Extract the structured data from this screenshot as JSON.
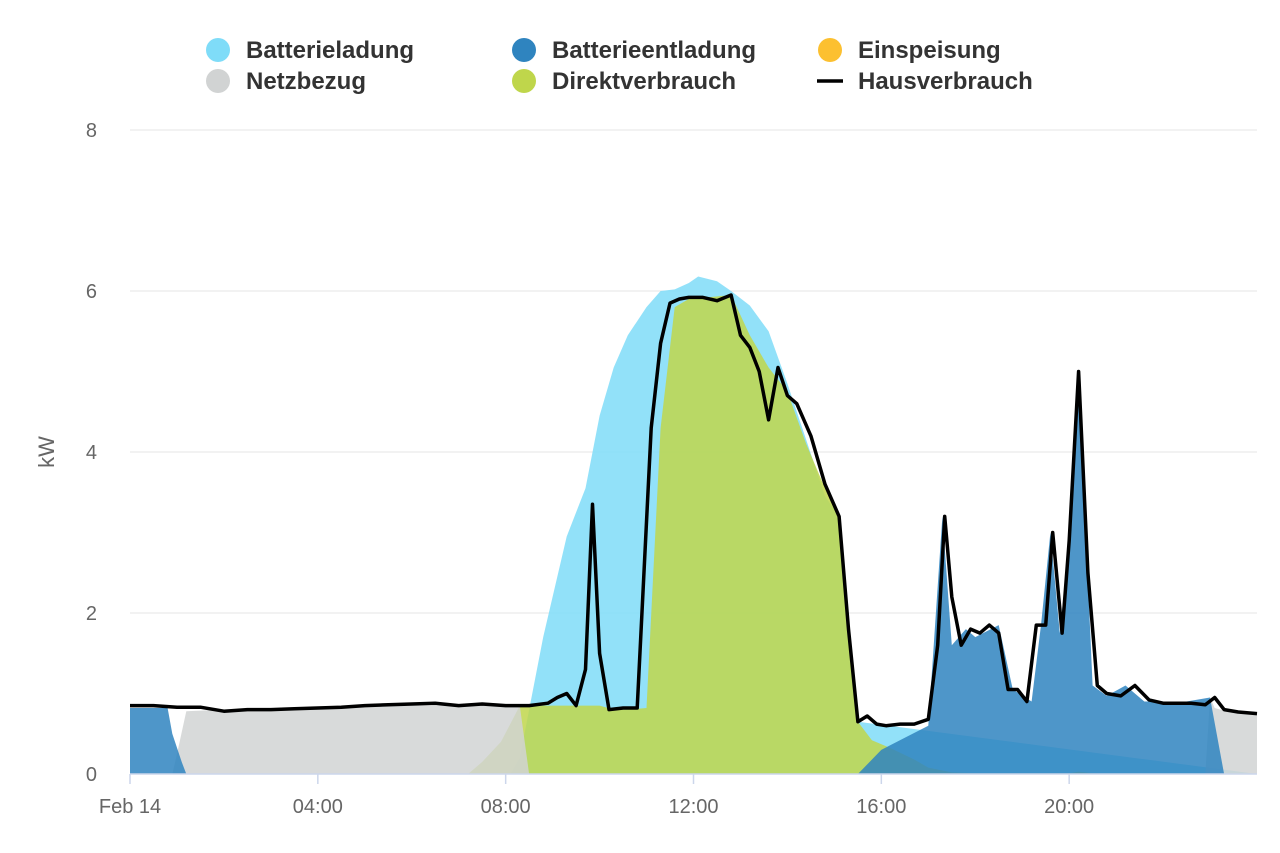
{
  "chart_data": {
    "type": "area",
    "title": "",
    "xlabel": "",
    "ylabel": "kW",
    "ylim": [
      0,
      8
    ],
    "yticks": [
      "0",
      "2",
      "4",
      "6",
      "8"
    ],
    "xlim_hours": [
      0,
      24
    ],
    "xticks": [
      {
        "hour": 0,
        "label": "Feb 14"
      },
      {
        "hour": 4,
        "label": "04:00"
      },
      {
        "hour": 8,
        "label": "08:00"
      },
      {
        "hour": 12,
        "label": "12:00"
      },
      {
        "hour": 16,
        "label": "16:00"
      },
      {
        "hour": 20,
        "label": "20:00"
      }
    ],
    "grid": true,
    "legend_position": "top",
    "legend": [
      {
        "key": "batterieladung",
        "label": "Batterieladung",
        "color": "#7fdcf8",
        "marker": "circle"
      },
      {
        "key": "batterieentladung",
        "label": "Batterieentladung",
        "color": "#2f84bf",
        "marker": "circle"
      },
      {
        "key": "einspeisung",
        "label": "Einspeisung",
        "color": "#fcc030",
        "marker": "circle"
      },
      {
        "key": "netzbezug",
        "label": "Netzbezug",
        "color": "#d1d3d3",
        "marker": "circle"
      },
      {
        "key": "direktverbrauch",
        "label": "Direktverbrauch",
        "color": "#bfd64b",
        "marker": "circle"
      },
      {
        "key": "hausverbrauch",
        "label": "Hausverbrauch",
        "color": "#000000",
        "marker": "line"
      }
    ],
    "series": {
      "direktverbrauch": {
        "x": [
          0,
          7.2,
          7.5,
          7.9,
          8.3,
          8.8,
          9.3,
          9.7,
          10.0,
          10.3,
          10.6,
          11.0,
          11.3,
          11.6,
          11.9,
          12.3,
          12.8,
          13.2,
          13.6,
          14.0,
          14.4,
          14.8,
          15.1,
          15.3,
          15.5,
          15.8,
          16.2,
          16.7,
          17.0,
          17.5,
          18.0,
          19.0,
          20.0,
          20.2,
          20.5,
          21.0,
          24
        ],
        "y": [
          0,
          0,
          0.15,
          0.4,
          0.85,
          0.85,
          0.85,
          0.85,
          0.85,
          0.8,
          0.8,
          0.82,
          4.3,
          5.8,
          5.9,
          5.92,
          5.95,
          5.45,
          5.05,
          4.75,
          4.1,
          3.55,
          3.2,
          1.8,
          0.65,
          0.42,
          0.32,
          0.18,
          0.08,
          0.02,
          0.01,
          0.01,
          0.01,
          0.03,
          0.01,
          0.0,
          0.0
        ]
      },
      "batterieladung": {
        "x": [
          0,
          8.1,
          8.3,
          8.8,
          9.3,
          9.7,
          10.0,
          10.3,
          10.6,
          11.0,
          11.3,
          11.6,
          11.9,
          12.1,
          12.5,
          12.8,
          13.2,
          13.6,
          14.0,
          14.4,
          14.8,
          15.1,
          15.3,
          15.5,
          24
        ],
        "y": [
          0,
          0,
          0.2,
          1.7,
          2.95,
          3.55,
          4.45,
          5.05,
          5.45,
          5.8,
          6.0,
          6.02,
          6.1,
          6.18,
          6.12,
          6.0,
          5.82,
          5.5,
          4.85,
          4.15,
          3.45,
          3.2,
          1.8,
          0.65,
          0
        ]
      },
      "batterieentladung": {
        "x": [
          0,
          0.8,
          0.9,
          1.1,
          1.2,
          15.5,
          16.0,
          16.5,
          17.0,
          17.3,
          17.5,
          17.8,
          18.0,
          18.5,
          18.8,
          19.2,
          19.4,
          19.6,
          19.8,
          20.0,
          20.2,
          20.5,
          20.8,
          21.2,
          21.6,
          22.0,
          22.5,
          23.0,
          23.3,
          24
        ],
        "y": [
          0.82,
          0.82,
          0.5,
          0.15,
          0,
          0,
          0.3,
          0.45,
          0.6,
          3.2,
          1.6,
          1.8,
          1.7,
          1.85,
          1.05,
          0.9,
          1.85,
          3.0,
          1.75,
          2.9,
          5.0,
          1.1,
          0.97,
          1.1,
          0.9,
          0.9,
          0.9,
          0.95,
          0,
          0
        ]
      },
      "netzbezug": {
        "x": [
          0,
          0.9,
          1.0,
          1.2,
          2.0,
          4.0,
          6.0,
          7.0,
          7.4,
          7.9,
          8.3,
          8.5,
          22.9,
          23.0,
          23.1,
          23.4,
          24
        ],
        "y": [
          0,
          0,
          0.25,
          0.78,
          0.8,
          0.82,
          0.85,
          0.85,
          0.85,
          0.85,
          0.85,
          0,
          0,
          0.95,
          0.82,
          0.77,
          0.75
        ]
      },
      "einspeisung": {
        "x": [
          0,
          24
        ],
        "y": [
          0,
          0
        ]
      },
      "hausverbrauch": {
        "x": [
          0,
          0.5,
          1.0,
          1.5,
          2.0,
          2.5,
          3.0,
          3.5,
          4.0,
          4.5,
          5.0,
          5.5,
          6.0,
          6.5,
          7.0,
          7.5,
          8.0,
          8.5,
          8.9,
          9.1,
          9.3,
          9.5,
          9.7,
          9.85,
          10.0,
          10.2,
          10.5,
          10.8,
          11.1,
          11.3,
          11.5,
          11.7,
          11.9,
          12.2,
          12.5,
          12.8,
          13.0,
          13.2,
          13.4,
          13.6,
          13.8,
          14.0,
          14.2,
          14.5,
          14.8,
          15.1,
          15.3,
          15.5,
          15.7,
          15.9,
          16.1,
          16.4,
          16.7,
          17.0,
          17.2,
          17.35,
          17.5,
          17.7,
          17.9,
          18.1,
          18.3,
          18.5,
          18.7,
          18.9,
          19.1,
          19.3,
          19.5,
          19.65,
          19.85,
          20.0,
          20.2,
          20.4,
          20.6,
          20.8,
          21.1,
          21.4,
          21.7,
          22.0,
          22.3,
          22.6,
          22.9,
          23.1,
          23.3,
          23.6,
          24.0
        ],
        "y": [
          0.85,
          0.85,
          0.83,
          0.83,
          0.78,
          0.8,
          0.8,
          0.81,
          0.82,
          0.83,
          0.85,
          0.86,
          0.87,
          0.88,
          0.85,
          0.87,
          0.85,
          0.85,
          0.88,
          0.95,
          1.0,
          0.85,
          1.3,
          3.35,
          1.5,
          0.8,
          0.82,
          0.82,
          4.3,
          5.35,
          5.85,
          5.9,
          5.92,
          5.92,
          5.88,
          5.95,
          5.45,
          5.3,
          5.0,
          4.4,
          5.05,
          4.7,
          4.6,
          4.2,
          3.6,
          3.2,
          1.8,
          0.65,
          0.72,
          0.62,
          0.6,
          0.62,
          0.62,
          0.68,
          1.6,
          3.2,
          2.2,
          1.6,
          1.8,
          1.75,
          1.85,
          1.75,
          1.05,
          1.05,
          0.9,
          1.85,
          1.85,
          3.0,
          1.75,
          2.9,
          5.0,
          2.5,
          1.1,
          1.0,
          0.97,
          1.1,
          0.92,
          0.88,
          0.88,
          0.88,
          0.86,
          0.95,
          0.8,
          0.77,
          0.75
        ]
      }
    }
  }
}
